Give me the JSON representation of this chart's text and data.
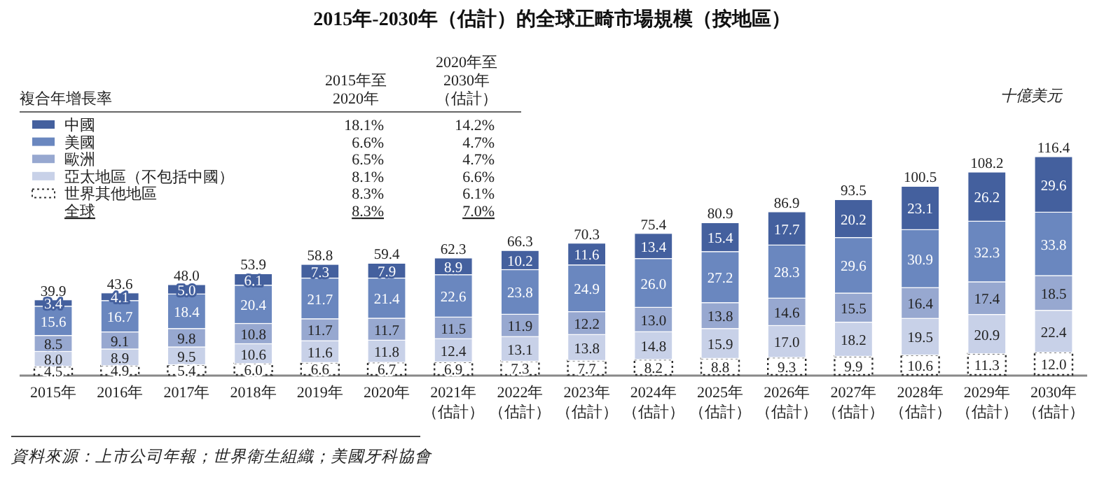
{
  "chart_data": {
    "type": "bar",
    "stacked": true,
    "legend": "top left",
    "title": "2015年-2030年（估計）的全球正畸市場規模（按地區）",
    "ylabel": "十億美元",
    "categories": [
      "2015年",
      "2016年",
      "2017年",
      "2018年",
      "2019年",
      "2020年",
      "2021年（估計）",
      "2022年（估計）",
      "2023年（估計）",
      "2024年（估計）",
      "2025年（估計）",
      "2026年（估計）",
      "2027年（估計）",
      "2028年（估計）",
      "2029年（估計）",
      "2030年（估計）"
    ],
    "series": [
      {
        "name": "世界其他地區",
        "color": "#ffffff",
        "line_style": "dotted",
        "values": [
          4.5,
          4.9,
          5.4,
          6.0,
          6.6,
          6.7,
          6.9,
          7.3,
          7.7,
          8.2,
          8.8,
          9.3,
          9.9,
          10.6,
          11.3,
          12.0
        ],
        "value_labels": [
          "4.5",
          "4.9",
          "5.4",
          "6.0",
          "6.6",
          "6.7",
          "6.9",
          "7.3",
          "7.7",
          "8.2",
          "8.8",
          "9.3",
          "9.9",
          "10.6",
          "11.3",
          "12.0"
        ]
      },
      {
        "name": "亞太地區（不包括中國）",
        "color": "#c8d1e8",
        "values": [
          8.0,
          8.9,
          9.5,
          10.6,
          11.6,
          11.8,
          12.4,
          13.1,
          13.8,
          14.8,
          15.9,
          17.0,
          18.2,
          19.5,
          20.9,
          22.4
        ],
        "value_labels": [
          "8.0",
          "8.9",
          "9.5",
          "10.6",
          "11.6",
          "11.8",
          "12.4",
          "13.1",
          "13.8",
          "14.8",
          "15.9",
          "17.0",
          "18.2",
          "19.5",
          "20.9",
          "22.4"
        ]
      },
      {
        "name": "歐洲",
        "color": "#97a8d0",
        "values": [
          8.5,
          9.1,
          9.8,
          10.8,
          11.7,
          11.7,
          11.5,
          11.9,
          12.2,
          13.0,
          13.8,
          14.6,
          15.5,
          16.4,
          17.4,
          18.5
        ],
        "value_labels": [
          "8.5",
          "9.1",
          "9.8",
          "10.8",
          "11.7",
          "11.7",
          "11.5",
          "11.9",
          "12.2",
          "13.0",
          "13.8",
          "14.6",
          "15.5",
          "16.4",
          "17.4",
          "18.5"
        ]
      },
      {
        "name": "美國",
        "color": "#6a87bf",
        "values": [
          15.6,
          16.7,
          18.4,
          20.4,
          21.7,
          21.4,
          22.6,
          23.8,
          24.9,
          26.0,
          27.2,
          28.3,
          29.6,
          30.9,
          32.3,
          33.8
        ],
        "value_labels": [
          "15.6",
          "16.7",
          "18.4",
          "20.4",
          "21.7",
          "21.4",
          "22.6",
          "23.8",
          "24.9",
          "26.0",
          "27.2",
          "28.3",
          "29.6",
          "30.9",
          "32.3",
          "33.8"
        ]
      },
      {
        "name": "中國",
        "color": "#44609e",
        "values": [
          3.4,
          4.1,
          5.0,
          6.1,
          7.3,
          7.9,
          8.9,
          10.2,
          11.6,
          13.4,
          15.4,
          17.7,
          20.2,
          23.1,
          26.2,
          29.6
        ],
        "value_labels": [
          "3.4",
          "4.1",
          "5.0",
          "6.1",
          "7.3",
          "7.9",
          "8.9",
          "10.2",
          "11.6",
          "13.4",
          "15.4",
          "17.7",
          "20.2",
          "23.1",
          "26.2",
          "29.6"
        ]
      }
    ],
    "totals": [
      "39.9",
      "43.6",
      "48.0",
      "53.9",
      "58.8",
      "59.4",
      "62.3",
      "66.3",
      "70.3",
      "75.4",
      "80.9",
      "86.9",
      "93.5",
      "100.5",
      "108.2",
      "116.4"
    ],
    "annotations": [
      "複合年增長率",
      "2015年至2020年",
      "2020年至2030年（估計）",
      "18.1%",
      "14.2%",
      "6.6%",
      "4.7%",
      "6.5%",
      "4.7%",
      "8.1%",
      "6.6%",
      "8.3%",
      "6.1%",
      "全球",
      "8.3%",
      "7.0%",
      "資料來源：上市公司年報；世界衛生組織；美國牙科協會"
    ]
  }
}
